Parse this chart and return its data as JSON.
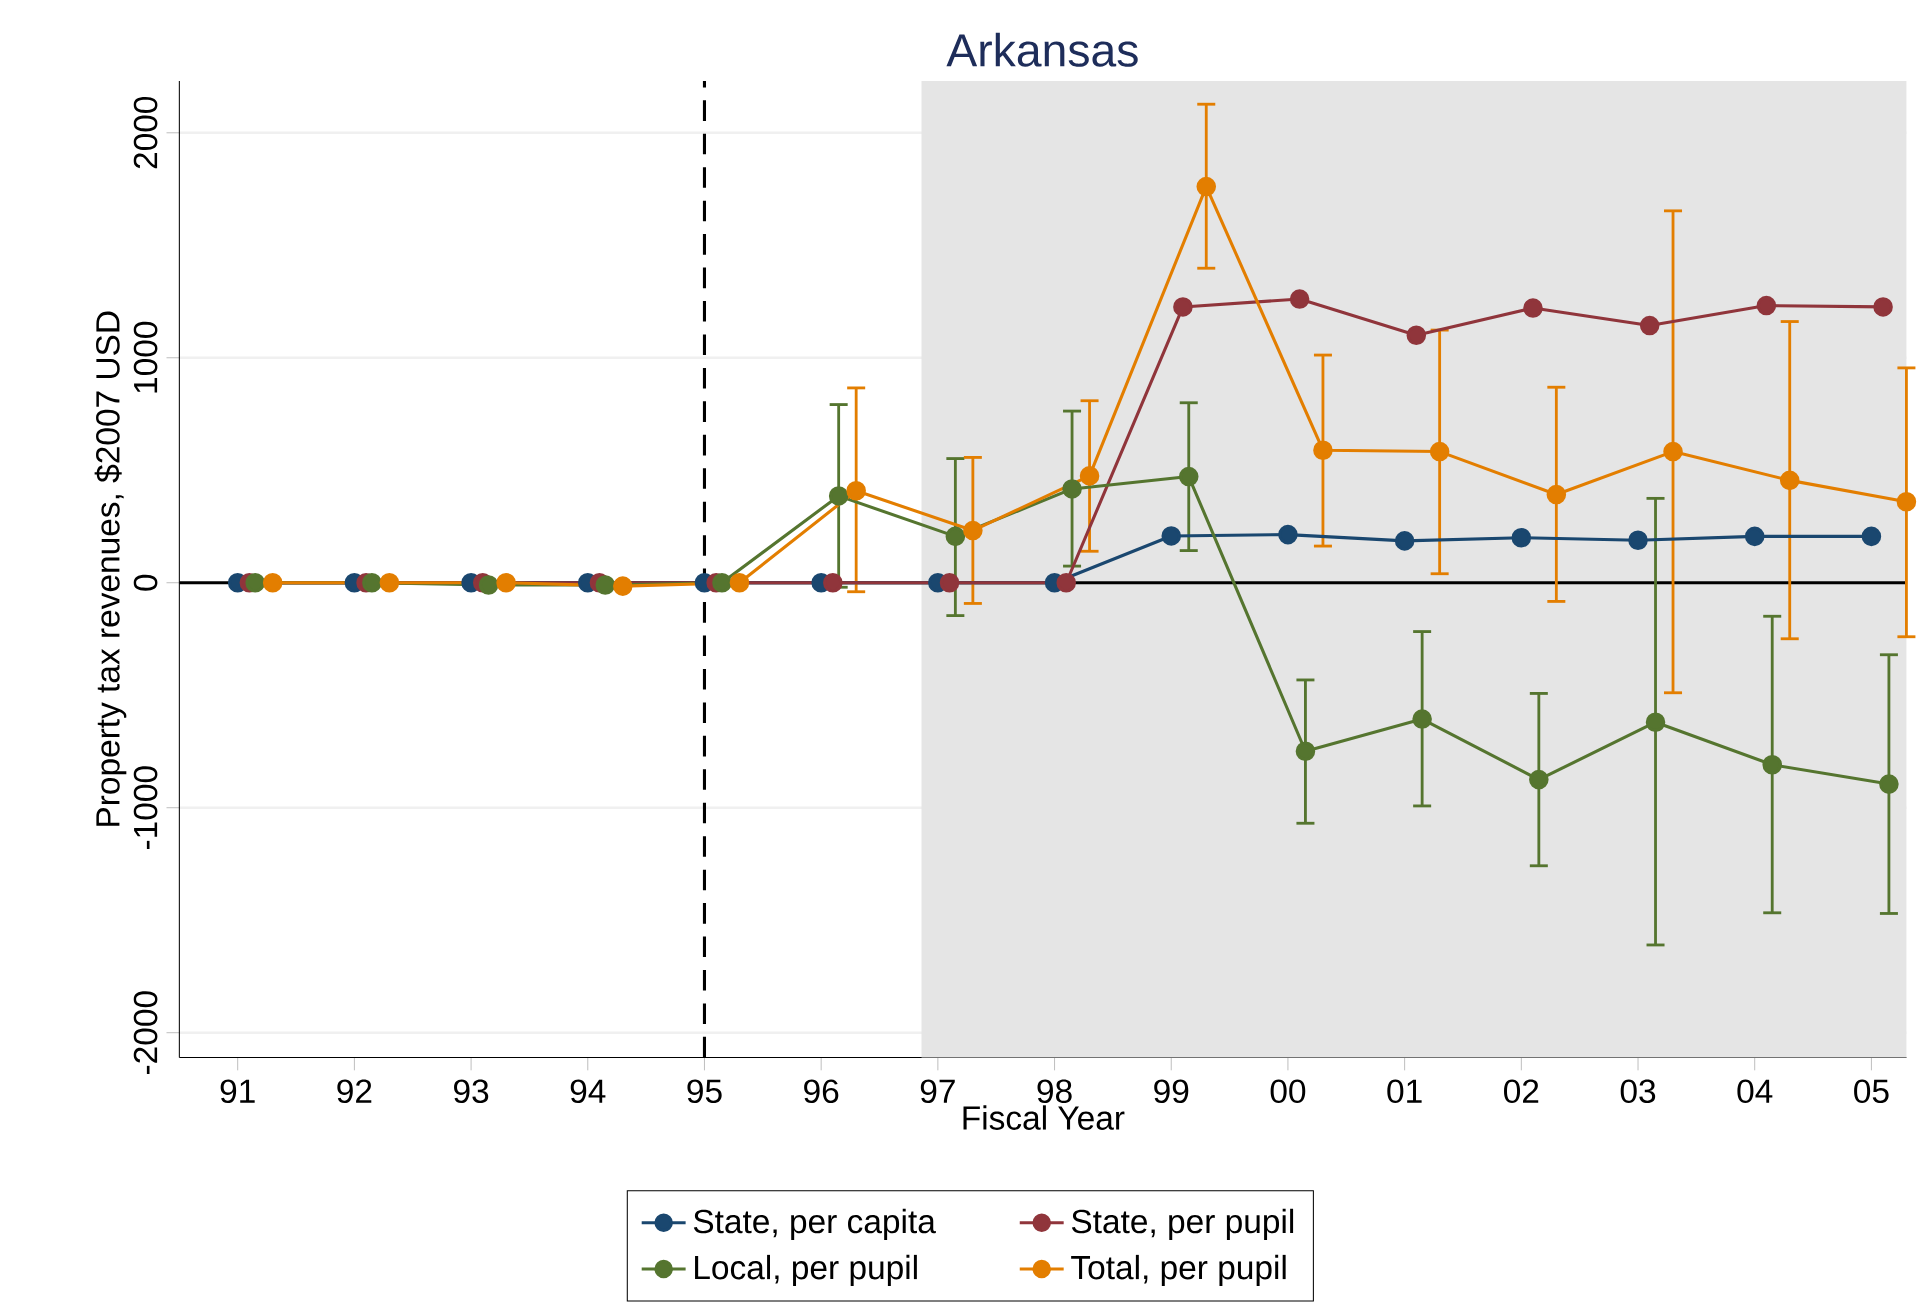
{
  "chart_data": {
    "type": "line",
    "title": "Arkansas",
    "xlabel": "Fiscal Year",
    "ylabel": "Property tax revenues, $2007 USD",
    "xlim": [
      1990.5,
      2005.3
    ],
    "ylim": [
      -2110,
      2230
    ],
    "xticks": [
      {
        "value": 1991,
        "label": "91"
      },
      {
        "value": 1992,
        "label": "92"
      },
      {
        "value": 1993,
        "label": "93"
      },
      {
        "value": 1994,
        "label": "94"
      },
      {
        "value": 1995,
        "label": "95"
      },
      {
        "value": 1996,
        "label": "96"
      },
      {
        "value": 1997,
        "label": "97"
      },
      {
        "value": 1998,
        "label": "98"
      },
      {
        "value": 1999,
        "label": "99"
      },
      {
        "value": 2000,
        "label": "00"
      },
      {
        "value": 2001,
        "label": "01"
      },
      {
        "value": 2002,
        "label": "02"
      },
      {
        "value": 2003,
        "label": "03"
      },
      {
        "value": 2004,
        "label": "04"
      },
      {
        "value": 2005,
        "label": "05"
      }
    ],
    "yticks": [
      -2000,
      -1000,
      0,
      1000,
      2000
    ],
    "grid": "y",
    "legend": "bottom",
    "marker": "circle",
    "line_style": "solid",
    "ref_lines": [
      {
        "axis": "x",
        "value": 1995,
        "color": "#000000",
        "line_style": "dashed"
      },
      {
        "axis": "y",
        "value": 0,
        "color": "#000000",
        "line_style": "solid"
      }
    ],
    "bands": [
      {
        "axis": "x",
        "from": 1996.86,
        "to": 2005.3,
        "color": "#e5e5e5"
      }
    ],
    "series": [
      {
        "name": "State, per capita",
        "color": "#1a476f",
        "x": [
          1991,
          1992,
          1993,
          1994,
          1995,
          1996,
          1997,
          1998,
          1999,
          2000,
          2001,
          2002,
          2003,
          2004,
          2005
        ],
        "values": [
          0,
          0,
          0,
          0,
          0,
          0,
          0,
          0,
          208,
          214,
          186,
          200,
          189,
          206,
          206
        ]
      },
      {
        "name": "State, per pupil",
        "color": "#90353b",
        "x": [
          1991.1,
          1992.1,
          1993.1,
          1994.1,
          1995.1,
          1996.1,
          1997.1,
          1998.1,
          1999.1,
          2000.1,
          2001.1,
          2002.1,
          2003.1,
          2004.1,
          2005.1
        ],
        "values": [
          0,
          0,
          0,
          0,
          0,
          0,
          0,
          0,
          1226,
          1261,
          1100,
          1221,
          1143,
          1232,
          1226
        ]
      },
      {
        "name": "Local, per pupil",
        "color": "#55752f",
        "x": [
          1991.15,
          1992.15,
          1993.15,
          1994.15,
          1995.15,
          1996.15,
          1997.15,
          1998.15,
          1999.15,
          2000.15,
          2001.15,
          2002.15,
          2003.15,
          2004.15,
          2005.15
        ],
        "values": [
          0,
          0,
          -10,
          -10,
          0,
          386,
          206,
          417,
          472,
          -749,
          -606,
          -875,
          -620,
          -809,
          -895
        ],
        "errors": [
          null,
          null,
          null,
          null,
          null,
          [
            -20,
            792
          ],
          [
            -146,
            552
          ],
          [
            74,
            763
          ],
          [
            143,
            800
          ],
          [
            -1069,
            -432
          ],
          [
            -992,
            -217
          ],
          [
            -1258,
            -492
          ],
          [
            -1610,
            375
          ],
          [
            -1467,
            -149
          ],
          [
            -1470,
            -320
          ]
        ]
      },
      {
        "name": "Total, per pupil",
        "color": "#e37e00",
        "x": [
          1991.3,
          1992.3,
          1993.3,
          1994.3,
          1995.3,
          1996.3,
          1997.3,
          1998.3,
          1999.3,
          2000.3,
          2001.3,
          2002.3,
          2003.3,
          2004.3,
          2005.3
        ],
        "values": [
          0,
          0,
          0,
          -15,
          0,
          409,
          232,
          475,
          1761,
          589,
          583,
          392,
          583,
          455,
          360
        ],
        "errors": [
          null,
          null,
          null,
          null,
          null,
          [
            -40,
            866
          ],
          [
            -92,
            557
          ],
          [
            140,
            809
          ],
          [
            1398,
            2127
          ],
          [
            163,
            1012
          ],
          [
            40,
            1123
          ],
          [
            -83,
            869
          ],
          [
            -489,
            1653
          ],
          [
            -249,
            1161
          ],
          [
            -240,
            955
          ]
        ]
      }
    ]
  }
}
